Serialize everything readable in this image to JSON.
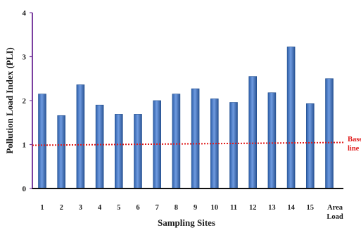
{
  "chart_data": {
    "type": "bar",
    "xlabel": "Sampling Sites",
    "ylabel": "Pollution Load Index (PLI)",
    "ylim": [
      0,
      4
    ],
    "yticks": [
      "0",
      "1",
      "2",
      "3",
      "4"
    ],
    "categories": [
      "1",
      "2",
      "3",
      "4",
      "5",
      "6",
      "7",
      "8",
      "9",
      "10",
      "11",
      "12",
      "13",
      "14",
      "15",
      "Area Load"
    ],
    "values": [
      2.15,
      1.66,
      2.36,
      1.9,
      1.69,
      1.69,
      2.0,
      2.15,
      2.27,
      2.04,
      1.96,
      2.55,
      2.18,
      3.22,
      1.93,
      2.5
    ],
    "baseline": {
      "value": 1,
      "label_line1": "Base",
      "label_line2": "line",
      "color": "#e01a1a"
    },
    "bar_color": "#4a7dc6",
    "axis_color": "#7b3fa0",
    "grid": false
  }
}
